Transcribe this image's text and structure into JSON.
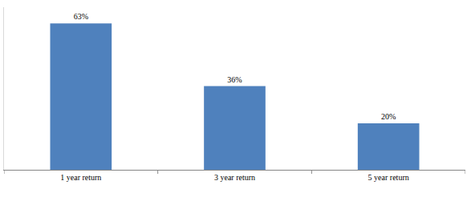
{
  "chart_data": {
    "type": "bar",
    "categories": [
      "1 year return",
      "3 year return",
      "5 year return"
    ],
    "values": [
      63,
      36,
      20
    ],
    "value_labels": [
      "63%",
      "36%",
      "20%"
    ],
    "data_labels": true,
    "color": "#4f81bd",
    "ylim": [
      0,
      70
    ],
    "tick_labels": "x",
    "grid": false
  }
}
